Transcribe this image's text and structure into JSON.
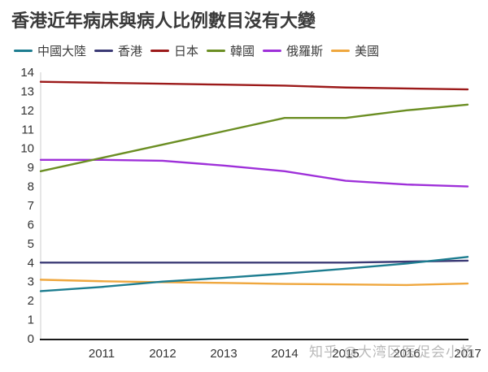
{
  "title": "香港近年病床與病人比例數目沒有大變",
  "watermark": "知乎 @大湾区医促会小杨",
  "chart_data": {
    "type": "line",
    "x": [
      2010,
      2011,
      2012,
      2013,
      2014,
      2015,
      2016,
      2017
    ],
    "x_tick_labels": [
      "2011",
      "2012",
      "2013",
      "2014",
      "2015",
      "2016",
      "2017"
    ],
    "y_tick_labels": [
      "0",
      "1",
      "2",
      "3",
      "4",
      "5",
      "6",
      "7",
      "8",
      "9",
      "10",
      "11",
      "12",
      "13",
      "14"
    ],
    "ylim": [
      0,
      14
    ],
    "grid": false,
    "legend_position": "top",
    "axis_color": "#1a1a1a",
    "y_axis_line_color": "#cccccc",
    "series": [
      {
        "name": "中國大陸",
        "color": "#1d7d90",
        "values": [
          2.5,
          2.72,
          3.0,
          3.2,
          3.42,
          3.68,
          3.95,
          4.3
        ]
      },
      {
        "name": "香港",
        "color": "#3b3a75",
        "values": [
          4.0,
          4.0,
          4.0,
          4.0,
          4.0,
          4.0,
          4.05,
          4.1
        ]
      },
      {
        "name": "日本",
        "color": "#9c1a1a",
        "values": [
          13.5,
          13.45,
          13.4,
          13.35,
          13.3,
          13.2,
          13.15,
          13.1
        ]
      },
      {
        "name": "韓國",
        "color": "#6b8e23",
        "values": [
          8.8,
          9.5,
          10.2,
          10.9,
          11.6,
          11.6,
          12.0,
          12.3
        ]
      },
      {
        "name": "俄羅斯",
        "color": "#9e30d9",
        "values": [
          9.4,
          9.4,
          9.35,
          9.1,
          8.8,
          8.3,
          8.1,
          8.0
        ]
      },
      {
        "name": "美國",
        "color": "#efa73e",
        "values": [
          3.1,
          3.02,
          2.97,
          2.93,
          2.88,
          2.85,
          2.82,
          2.9
        ]
      }
    ]
  }
}
